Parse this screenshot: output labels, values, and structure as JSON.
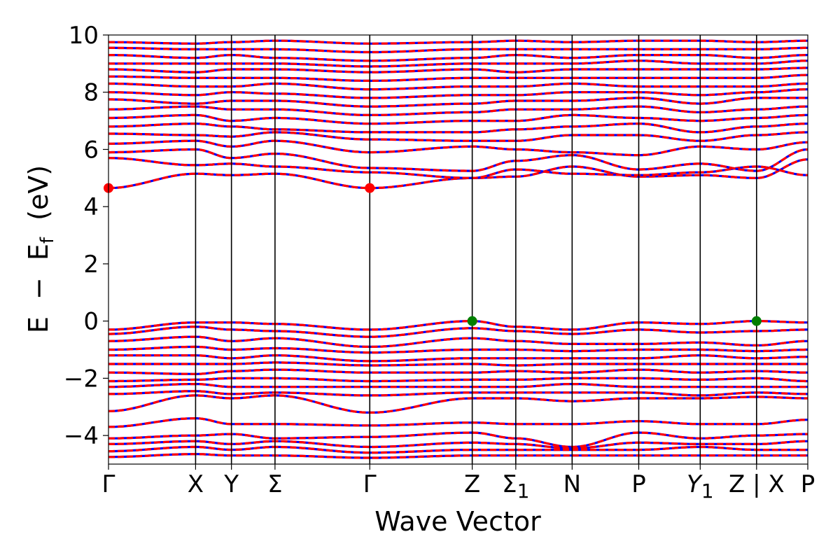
{
  "chart_data": {
    "type": "line",
    "title": "",
    "xlabel": "Wave Vector",
    "ylabel_parts": {
      "e": "E",
      "minus": "−",
      "ef_base": "E",
      "ef_sub": "f",
      "unit": "(eV)"
    },
    "ylim": [
      -5,
      10
    ],
    "yticks": [
      {
        "value": -4,
        "label": "−4"
      },
      {
        "value": -2,
        "label": "−2"
      },
      {
        "value": 0,
        "label": "0"
      },
      {
        "value": 2,
        "label": "2"
      },
      {
        "value": 4,
        "label": "4"
      },
      {
        "value": 6,
        "label": "6"
      },
      {
        "value": 8,
        "label": "8"
      },
      {
        "value": 10,
        "label": "10"
      }
    ],
    "kpoints": [
      {
        "pos": 0.0,
        "label": "Γ",
        "sub": ""
      },
      {
        "pos": 1.7,
        "label": "X",
        "sub": ""
      },
      {
        "pos": 2.4,
        "label": "Y",
        "sub": ""
      },
      {
        "pos": 3.25,
        "label": "Σ",
        "sub": ""
      },
      {
        "pos": 5.1,
        "label": "Γ",
        "sub": ""
      },
      {
        "pos": 7.1,
        "label": "Z",
        "sub": ""
      },
      {
        "pos": 7.95,
        "label": "Σ",
        "sub": "1"
      },
      {
        "pos": 9.05,
        "label": "N",
        "sub": ""
      },
      {
        "pos": 10.35,
        "label": "P",
        "sub": ""
      },
      {
        "pos": 11.55,
        "label": "Y",
        "sub": "1"
      },
      {
        "pos": 12.65,
        "label": "Z | X",
        "sub": ""
      },
      {
        "pos": 13.65,
        "label": "P",
        "sub": ""
      }
    ],
    "xlim": [
      0,
      13.65
    ],
    "legend": "none",
    "grid": false,
    "colors": {
      "spin_up": "#ff0000",
      "spin_down": "#0000ff",
      "vbm_marker": "#007f00",
      "cbm_marker": "#ff0000"
    },
    "special_points": [
      {
        "name": "CBM",
        "x": 0.0,
        "y": 4.65
      },
      {
        "name": "CBM",
        "x": 5.1,
        "y": 4.65
      },
      {
        "name": "VBM",
        "x": 7.1,
        "y": 0.0
      },
      {
        "name": "VBM",
        "x": 12.65,
        "y": 0.0
      }
    ],
    "bands": {
      "conduction": [
        [
          4.65,
          5.15,
          5.1,
          5.15,
          4.65,
          5.0,
          5.05,
          5.4,
          5.05,
          5.1,
          5.0,
          5.65
        ],
        [
          5.7,
          5.45,
          5.5,
          5.4,
          5.2,
          5.0,
          5.3,
          5.15,
          5.1,
          5.2,
          5.4,
          5.1
        ],
        [
          5.9,
          6.0,
          5.7,
          5.85,
          5.35,
          5.25,
          5.6,
          5.8,
          5.3,
          5.5,
          5.25,
          6.0
        ],
        [
          6.2,
          6.3,
          6.1,
          6.3,
          5.9,
          6.1,
          6.0,
          5.9,
          5.8,
          6.1,
          6.0,
          6.25
        ],
        [
          6.55,
          6.5,
          6.45,
          6.6,
          6.35,
          6.3,
          6.3,
          6.5,
          6.5,
          6.3,
          6.5,
          6.6
        ],
        [
          6.8,
          6.9,
          6.8,
          6.7,
          6.6,
          6.6,
          6.7,
          6.8,
          6.9,
          6.6,
          6.8,
          6.9
        ],
        [
          7.1,
          7.2,
          7.0,
          7.1,
          6.9,
          7.0,
          7.0,
          7.2,
          7.1,
          7.0,
          7.1,
          7.2
        ],
        [
          7.4,
          7.5,
          7.4,
          7.4,
          7.2,
          7.3,
          7.4,
          7.4,
          7.5,
          7.3,
          7.4,
          7.5
        ],
        [
          7.75,
          7.6,
          7.7,
          7.7,
          7.5,
          7.6,
          7.7,
          7.7,
          7.8,
          7.6,
          7.8,
          7.8
        ],
        [
          8.0,
          7.9,
          8.0,
          7.95,
          7.8,
          7.9,
          7.9,
          8.0,
          8.0,
          7.9,
          8.0,
          8.1
        ],
        [
          8.3,
          8.2,
          8.2,
          8.3,
          8.1,
          8.2,
          8.2,
          8.3,
          8.2,
          8.2,
          8.2,
          8.3
        ],
        [
          8.55,
          8.5,
          8.5,
          8.5,
          8.4,
          8.5,
          8.5,
          8.5,
          8.5,
          8.5,
          8.5,
          8.6
        ],
        [
          8.8,
          8.7,
          8.8,
          8.8,
          8.7,
          8.8,
          8.7,
          8.8,
          8.8,
          8.8,
          8.8,
          8.85
        ],
        [
          9.0,
          9.0,
          9.0,
          9.0,
          8.9,
          9.0,
          9.0,
          9.0,
          9.1,
          9.0,
          9.0,
          9.1
        ],
        [
          9.3,
          9.2,
          9.3,
          9.2,
          9.1,
          9.2,
          9.3,
          9.2,
          9.3,
          9.3,
          9.2,
          9.3
        ],
        [
          9.55,
          9.5,
          9.5,
          9.5,
          9.4,
          9.5,
          9.5,
          9.5,
          9.5,
          9.5,
          9.5,
          9.55
        ],
        [
          9.75,
          9.7,
          9.75,
          9.8,
          9.7,
          9.75,
          9.8,
          9.75,
          9.8,
          9.8,
          9.75,
          9.8
        ]
      ],
      "valence": [
        [
          -0.3,
          -0.05,
          -0.05,
          -0.1,
          -0.3,
          0.0,
          -0.2,
          -0.3,
          -0.05,
          -0.1,
          0.0,
          -0.05
        ],
        [
          -0.45,
          -0.2,
          -0.3,
          -0.35,
          -0.55,
          -0.25,
          -0.35,
          -0.45,
          -0.3,
          -0.4,
          -0.35,
          -0.3
        ],
        [
          -0.7,
          -0.55,
          -0.7,
          -0.6,
          -0.9,
          -0.6,
          -0.7,
          -0.8,
          -0.8,
          -0.75,
          -0.85,
          -0.7
        ],
        [
          -1.0,
          -0.9,
          -1.0,
          -0.95,
          -1.1,
          -1.0,
          -1.0,
          -1.05,
          -1.0,
          -1.0,
          -1.05,
          -1.0
        ],
        [
          -1.2,
          -1.2,
          -1.3,
          -1.2,
          -1.4,
          -1.3,
          -1.3,
          -1.3,
          -1.3,
          -1.2,
          -1.3,
          -1.25
        ],
        [
          -1.5,
          -1.5,
          -1.5,
          -1.45,
          -1.55,
          -1.5,
          -1.55,
          -1.5,
          -1.5,
          -1.5,
          -1.5,
          -1.5
        ],
        [
          -1.8,
          -1.85,
          -1.75,
          -1.7,
          -1.8,
          -1.8,
          -1.75,
          -1.8,
          -1.7,
          -1.8,
          -1.75,
          -1.8
        ],
        [
          -2.1,
          -2.05,
          -2.0,
          -2.0,
          -2.1,
          -2.05,
          -2.05,
          -2.0,
          -2.0,
          -2.05,
          -2.0,
          -2.1
        ],
        [
          -2.3,
          -2.2,
          -2.3,
          -2.3,
          -2.3,
          -2.3,
          -2.3,
          -2.2,
          -2.3,
          -2.3,
          -2.3,
          -2.3
        ],
        [
          -2.55,
          -2.45,
          -2.55,
          -2.5,
          -2.6,
          -2.5,
          -2.5,
          -2.5,
          -2.5,
          -2.6,
          -2.5,
          -2.55
        ],
        [
          -3.15,
          -2.6,
          -2.7,
          -2.6,
          -3.2,
          -2.7,
          -2.7,
          -2.8,
          -2.7,
          -2.7,
          -2.65,
          -2.7
        ],
        [
          -3.7,
          -3.4,
          -3.6,
          -3.6,
          -3.65,
          -3.55,
          -3.6,
          -3.6,
          -3.5,
          -3.6,
          -3.6,
          -3.45
        ],
        [
          -4.1,
          -4.0,
          -3.95,
          -4.1,
          -4.05,
          -3.9,
          -4.1,
          -4.4,
          -3.9,
          -4.1,
          -4.0,
          -3.95
        ],
        [
          -4.3,
          -4.2,
          -4.3,
          -4.2,
          -4.4,
          -4.25,
          -4.3,
          -4.45,
          -4.25,
          -4.3,
          -4.3,
          -4.2
        ],
        [
          -4.55,
          -4.4,
          -4.5,
          -4.4,
          -4.6,
          -4.5,
          -4.5,
          -4.5,
          -4.5,
          -4.4,
          -4.5,
          -4.5
        ],
        [
          -4.75,
          -4.65,
          -4.7,
          -4.7,
          -4.78,
          -4.7,
          -4.7,
          -4.7,
          -4.7,
          -4.7,
          -4.7,
          -4.7
        ]
      ]
    }
  }
}
